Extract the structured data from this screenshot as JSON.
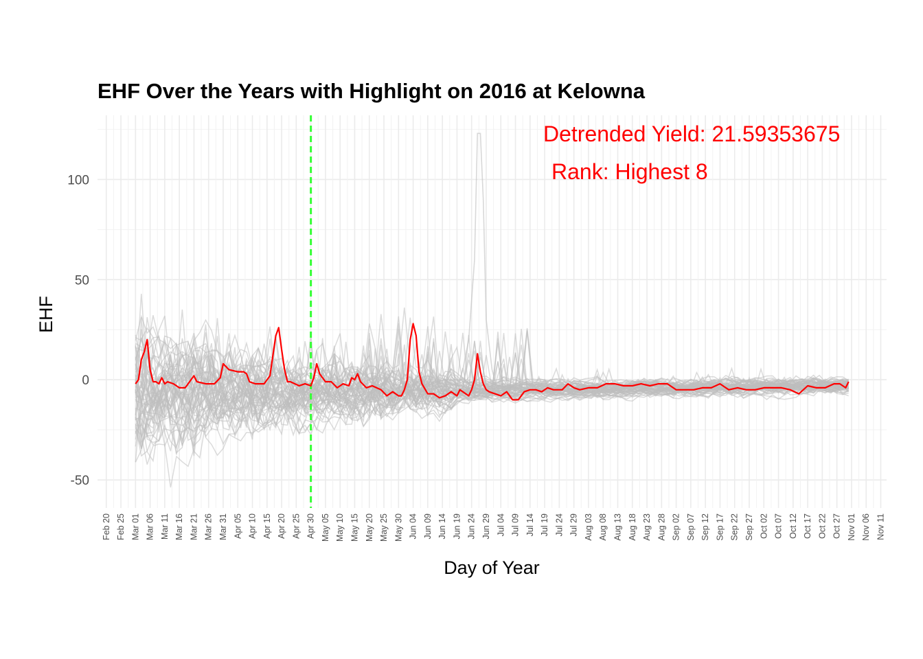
{
  "chart_data": {
    "type": "line",
    "title": "EHF Over the Years with Highlight on 2016 at Kelowna",
    "xlabel": "Day of Year",
    "ylabel": "EHF",
    "xlim": [
      "2016-02-17",
      "2016-11-13"
    ],
    "ylim": [
      -64,
      132
    ],
    "grid": true,
    "y_ticks": [
      -50,
      0,
      50,
      100
    ],
    "x_tick_dates": [
      "2016-02-20",
      "2016-02-25",
      "2016-03-01",
      "2016-03-06",
      "2016-03-11",
      "2016-03-16",
      "2016-03-21",
      "2016-03-26",
      "2016-03-31",
      "2016-04-05",
      "2016-04-10",
      "2016-04-15",
      "2016-04-20",
      "2016-04-25",
      "2016-04-30",
      "2016-05-05",
      "2016-05-10",
      "2016-05-15",
      "2016-05-20",
      "2016-05-25",
      "2016-05-30",
      "2016-06-04",
      "2016-06-09",
      "2016-06-14",
      "2016-06-19",
      "2016-06-24",
      "2016-06-29",
      "2016-07-04",
      "2016-07-09",
      "2016-07-14",
      "2016-07-19",
      "2016-07-24",
      "2016-07-29",
      "2016-08-03",
      "2016-08-08",
      "2016-08-13",
      "2016-08-18",
      "2016-08-23",
      "2016-08-28",
      "2016-09-02",
      "2016-09-07",
      "2016-09-12",
      "2016-09-17",
      "2016-09-22",
      "2016-09-27",
      "2016-10-02",
      "2016-10-07",
      "2016-10-12",
      "2016-10-17",
      "2016-10-22",
      "2016-10-27",
      "2016-11-01",
      "2016-11-06",
      "2016-11-11"
    ],
    "x_tick_labels": [
      "Feb 20",
      "Feb 25",
      "Mar 01",
      "Mar 06",
      "Mar 11",
      "Mar 16",
      "Mar 21",
      "Mar 26",
      "Mar 31",
      "Apr 05",
      "Apr 10",
      "Apr 15",
      "Apr 20",
      "Apr 25",
      "Apr 30",
      "May 05",
      "May 10",
      "May 15",
      "May 20",
      "May 25",
      "May 30",
      "Jun 04",
      "Jun 09",
      "Jun 14",
      "Jun 19",
      "Jun 24",
      "Jun 29",
      "Jul 04",
      "Jul 09",
      "Jul 14",
      "Jul 19",
      "Jul 24",
      "Jul 29",
      "Aug 03",
      "Aug 08",
      "Aug 13",
      "Aug 18",
      "Aug 23",
      "Aug 28",
      "Sep 02",
      "Sep 07",
      "Sep 12",
      "Sep 17",
      "Sep 22",
      "Sep 27",
      "Oct 02",
      "Oct 07",
      "Oct 12",
      "Oct 17",
      "Oct 22",
      "Oct 27",
      "Nov 01",
      "Nov 06",
      "Nov 11"
    ],
    "reference_line": {
      "x": "2016-04-30",
      "color": "#33ff33",
      "style": "dashed"
    },
    "highlight_series": {
      "color": "#ff0000",
      "x": [
        "2016-03-01",
        "2016-03-02",
        "2016-03-03",
        "2016-03-04",
        "2016-03-05",
        "2016-03-06",
        "2016-03-07",
        "2016-03-08",
        "2016-03-09",
        "2016-03-10",
        "2016-03-11",
        "2016-03-12",
        "2016-03-14",
        "2016-03-16",
        "2016-03-18",
        "2016-03-21",
        "2016-03-22",
        "2016-03-25",
        "2016-03-28",
        "2016-03-30",
        "2016-03-31",
        "2016-04-02",
        "2016-04-05",
        "2016-04-07",
        "2016-04-08",
        "2016-04-09",
        "2016-04-11",
        "2016-04-14",
        "2016-04-16",
        "2016-04-17",
        "2016-04-18",
        "2016-04-19",
        "2016-04-20",
        "2016-04-21",
        "2016-04-22",
        "2016-04-23",
        "2016-04-26",
        "2016-04-28",
        "2016-04-30",
        "2016-05-01",
        "2016-05-02",
        "2016-05-03",
        "2016-05-05",
        "2016-05-07",
        "2016-05-09",
        "2016-05-11",
        "2016-05-13",
        "2016-05-14",
        "2016-05-15",
        "2016-05-16",
        "2016-05-17",
        "2016-05-19",
        "2016-05-21",
        "2016-05-24",
        "2016-05-26",
        "2016-05-28",
        "2016-05-30",
        "2016-05-31",
        "2016-06-01",
        "2016-06-02",
        "2016-06-03",
        "2016-06-04",
        "2016-06-05",
        "2016-06-06",
        "2016-06-07",
        "2016-06-09",
        "2016-06-11",
        "2016-06-13",
        "2016-06-15",
        "2016-06-17",
        "2016-06-18",
        "2016-06-19",
        "2016-06-20",
        "2016-06-21",
        "2016-06-22",
        "2016-06-23",
        "2016-06-24",
        "2016-06-25",
        "2016-06-26",
        "2016-06-27",
        "2016-06-28",
        "2016-06-29",
        "2016-06-30",
        "2016-07-02",
        "2016-07-04",
        "2016-07-06",
        "2016-07-08",
        "2016-07-10",
        "2016-07-12",
        "2016-07-14",
        "2016-07-16",
        "2016-07-18",
        "2016-07-20",
        "2016-07-22",
        "2016-07-25",
        "2016-07-27",
        "2016-07-29",
        "2016-07-31",
        "2016-08-03",
        "2016-08-06",
        "2016-08-09",
        "2016-08-12",
        "2016-08-15",
        "2016-08-18",
        "2016-08-21",
        "2016-08-24",
        "2016-08-27",
        "2016-08-30",
        "2016-09-02",
        "2016-09-05",
        "2016-09-08",
        "2016-09-11",
        "2016-09-14",
        "2016-09-17",
        "2016-09-20",
        "2016-09-23",
        "2016-09-26",
        "2016-09-29",
        "2016-10-02",
        "2016-10-05",
        "2016-10-08",
        "2016-10-11",
        "2016-10-14",
        "2016-10-17",
        "2016-10-20",
        "2016-10-23",
        "2016-10-26",
        "2016-10-28",
        "2016-10-30",
        "2016-10-31"
      ],
      "y": [
        -2,
        0,
        10,
        14,
        20,
        5,
        -1,
        -1,
        -2,
        1,
        -2,
        -1,
        -2,
        -4,
        -4,
        2,
        -1,
        -2,
        -2,
        1,
        8,
        5,
        4,
        4,
        3,
        -1,
        -2,
        -2,
        2,
        12,
        22,
        26,
        15,
        5,
        -1,
        -1,
        -3,
        -2,
        -3,
        1,
        8,
        3,
        -1,
        -1,
        -4,
        -2,
        -3,
        1,
        0,
        3,
        -1,
        -4,
        -3,
        -5,
        -8,
        -6,
        -8,
        -8,
        -5,
        0,
        20,
        28,
        22,
        4,
        -2,
        -7,
        -7,
        -9,
        -8,
        -6,
        -7,
        -8,
        -5,
        -6,
        -7,
        -8,
        -5,
        0,
        13,
        4,
        -2,
        -5,
        -6,
        -7,
        -8,
        -6,
        -10,
        -10,
        -6,
        -5,
        -5,
        -6,
        -4,
        -5,
        -5,
        -2,
        -4,
        -5,
        -4,
        -4,
        -2,
        -2,
        -3,
        -3,
        -2,
        -3,
        -2,
        -2,
        -5,
        -5,
        -5,
        -4,
        -4,
        -2,
        -5,
        -4,
        -5,
        -5,
        -4,
        -4,
        -4,
        -5,
        -7,
        -3,
        -4,
        -4,
        -2,
        -2,
        -4,
        -1
      ]
    },
    "background_series_color": "#bebebe",
    "background_series_count": 60,
    "annotations": [
      "Detrended Yield: 21.59353675",
      "Rank: Highest 8"
    ]
  }
}
